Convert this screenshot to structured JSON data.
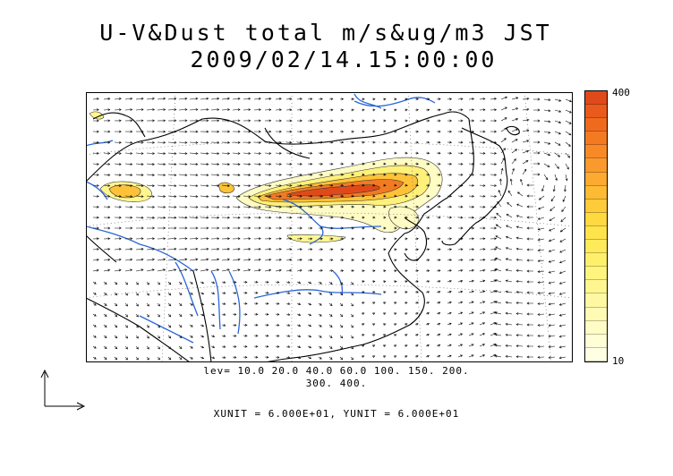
{
  "title": {
    "line1": "U-V&Dust total m/s&ug/m3 JST",
    "line2": "2009/02/14.15:00:00"
  },
  "colorbar": {
    "max_label": "400",
    "min_label": "10",
    "colors": [
      "#e04a1a",
      "#ea5a1c",
      "#f06a1e",
      "#f47a22",
      "#f78a26",
      "#fa9a2c",
      "#fcaa30",
      "#fdbb34",
      "#fecb3a",
      "#fed940",
      "#ffe34a",
      "#ffeb5a",
      "#fff06c",
      "#fff47e",
      "#fff690",
      "#fff8a2",
      "#fffab4",
      "#fffcc6",
      "#fffed6",
      "#ffffe4"
    ]
  },
  "levels": {
    "line1": "lev= 10.0 20.0 40.0 60.0 100. 150. 200.",
    "line2": "300. 400."
  },
  "units": "XUNIT = 6.000E+01, YUNIT = 6.000E+01",
  "map_colors": {
    "coast": "#000000",
    "rivers": "#2a66d8",
    "arrows": "#000000"
  }
}
